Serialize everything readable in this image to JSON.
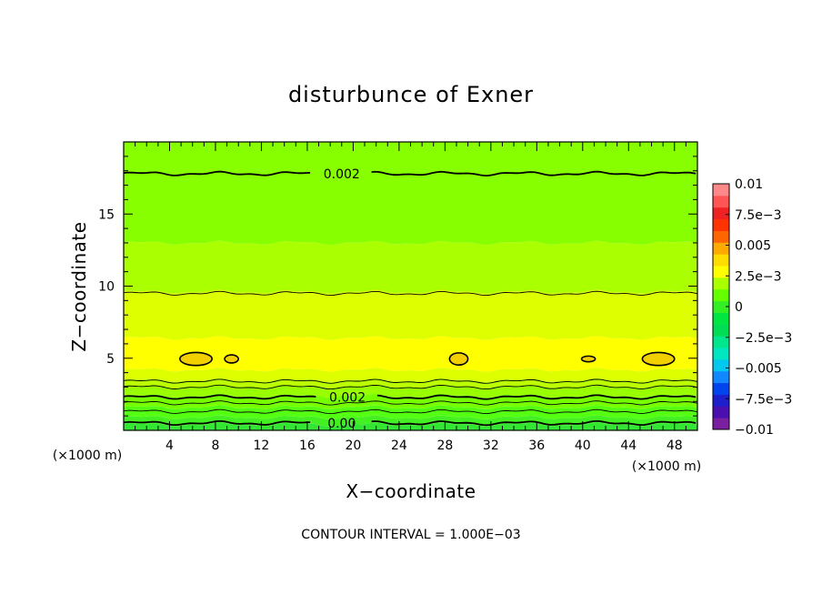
{
  "chart_data": {
    "type": "contour",
    "title": "disturbunce of Exner",
    "xlabel": "X−coordinate",
    "ylabel": "Z−coordinate",
    "x_unit": "(×1000 m)",
    "y_unit": "(×1000 m)",
    "xlim": [
      0,
      50
    ],
    "ylim": [
      0,
      20
    ],
    "x_ticks": [
      4,
      8,
      12,
      16,
      20,
      24,
      28,
      32,
      36,
      40,
      44,
      48
    ],
    "y_ticks": [
      5,
      10,
      15
    ],
    "footer": "CONTOUR INTERVAL = 1.000E−03",
    "contour_interval": 0.001,
    "bands": [
      {
        "z0": 0.0,
        "z1": 0.4,
        "level": 0.0,
        "color": "#33e633"
      },
      {
        "z0": 0.4,
        "z1": 0.9,
        "level": 0.0005,
        "color": "#44f022"
      },
      {
        "z0": 0.9,
        "z1": 1.6,
        "level": 0.001,
        "color": "#55ff11"
      },
      {
        "z0": 1.6,
        "z1": 2.4,
        "level": 0.0015,
        "color": "#77ff00"
      },
      {
        "z0": 2.4,
        "z1": 3.0,
        "level": 0.002,
        "color": "#99ff00"
      },
      {
        "z0": 3.0,
        "z1": 3.5,
        "level": 0.0025,
        "color": "#bbff00"
      },
      {
        "z0": 3.5,
        "z1": 4.2,
        "level": 0.003,
        "color": "#ddff00"
      },
      {
        "z0": 4.2,
        "z1": 6.4,
        "level": 0.0035,
        "color": "#ffff00"
      },
      {
        "z0": 6.4,
        "z1": 9.6,
        "level": 0.003,
        "color": "#ddff00"
      },
      {
        "z0": 9.6,
        "z1": 13.0,
        "level": 0.0025,
        "color": "#aaff00"
      },
      {
        "z0": 13.0,
        "z1": 20.0,
        "level": 0.002,
        "color": "#88ff00"
      }
    ],
    "contour_lines": [
      {
        "z": 0.5,
        "weight": "bold",
        "label": "0.00",
        "label_x": 19
      },
      {
        "z": 1.3,
        "weight": "thin"
      },
      {
        "z": 1.9,
        "weight": "thin"
      },
      {
        "z": 2.3,
        "weight": "bold",
        "label": "0.002",
        "label_x": 19.5
      },
      {
        "z": 3.0,
        "weight": "thin"
      },
      {
        "z": 3.4,
        "weight": "thin"
      },
      {
        "z": 9.5,
        "weight": "thin"
      },
      {
        "z": 17.8,
        "weight": "bold",
        "label": "0.002",
        "label_x": 19
      }
    ],
    "closed_contours": [
      {
        "x": 6.3,
        "z": 4.95,
        "rx": 1.4,
        "rz": 0.45
      },
      {
        "x": 9.4,
        "z": 4.95,
        "rx": 0.6,
        "rz": 0.28
      },
      {
        "x": 29.2,
        "z": 4.95,
        "rx": 0.8,
        "rz": 0.42
      },
      {
        "x": 40.5,
        "z": 4.95,
        "rx": 0.6,
        "rz": 0.2
      },
      {
        "x": 46.6,
        "z": 4.95,
        "rx": 1.4,
        "rz": 0.45
      }
    ],
    "colorbar": {
      "min": -0.01,
      "max": 0.01,
      "labels": [
        "0.01",
        "7.5e−3",
        "0.005",
        "2.5e−3",
        "0",
        "−2.5e−3",
        "−0.005",
        "−7.5e−3",
        "−0.01"
      ],
      "colors": [
        "#7a1fa0",
        "#4b0fb0",
        "#1e1ecc",
        "#0044ee",
        "#1188ff",
        "#00c8ee",
        "#00e6c0",
        "#00e68c",
        "#00dd55",
        "#00e640",
        "#33ee22",
        "#66ff00",
        "#aaff00",
        "#ffff00",
        "#ffdd00",
        "#ffaa00",
        "#ff6600",
        "#ff3300",
        "#ee2222",
        "#ff5555",
        "#ff8888"
      ]
    }
  }
}
